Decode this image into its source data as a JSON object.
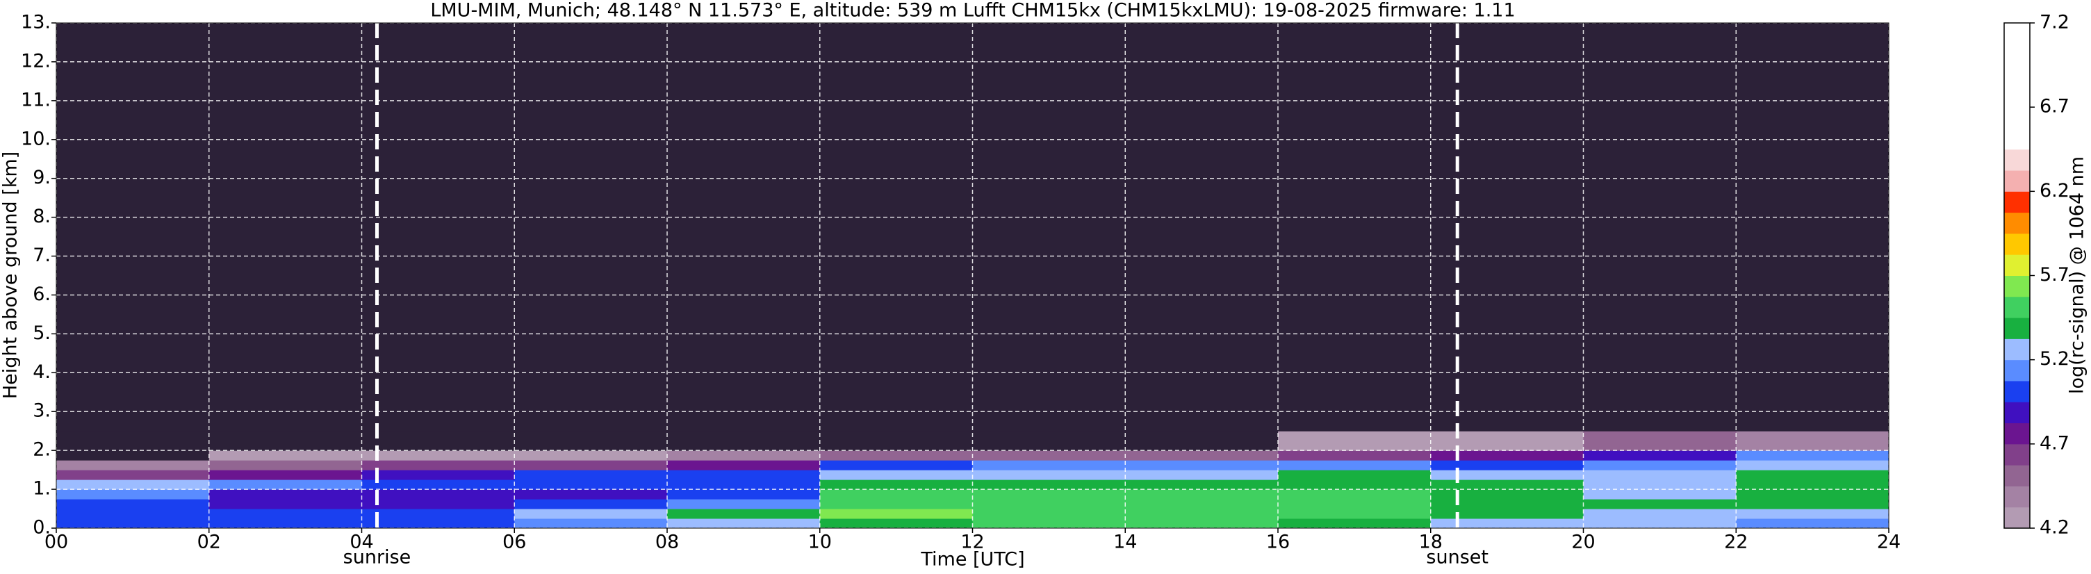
{
  "chart_data": {
    "type": "heatmap",
    "title": "LMU-MIM, Munich; 48.148° N 11.573° E, altitude: 539 m    Lufft CHM15kx (CHM15kxLMU): 19-08-2025    firmware: 1.11",
    "x_label": "Time [UTC]",
    "y_label": "Height above ground [km]",
    "colorbar_label": "log(rc-signal) @ 1064 nm",
    "xlim": [
      0,
      24
    ],
    "ylim": [
      0,
      13
    ],
    "xticks": [
      {
        "value": 0,
        "label": "00"
      },
      {
        "value": 2,
        "label": "02"
      },
      {
        "value": 4,
        "label": "04"
      },
      {
        "value": 6,
        "label": "06"
      },
      {
        "value": 8,
        "label": "08"
      },
      {
        "value": 10,
        "label": "10"
      },
      {
        "value": 12,
        "label": "12"
      },
      {
        "value": 14,
        "label": "14"
      },
      {
        "value": 16,
        "label": "16"
      },
      {
        "value": 18,
        "label": "18"
      },
      {
        "value": 20,
        "label": "20"
      },
      {
        "value": 22,
        "label": "22"
      },
      {
        "value": 24,
        "label": "24"
      }
    ],
    "yticks": [
      {
        "value": 0,
        "label": "0."
      },
      {
        "value": 1,
        "label": "1."
      },
      {
        "value": 2,
        "label": "2."
      },
      {
        "value": 3,
        "label": "3."
      },
      {
        "value": 4,
        "label": "4."
      },
      {
        "value": 5,
        "label": "5."
      },
      {
        "value": 6,
        "label": "6."
      },
      {
        "value": 7,
        "label": "7."
      },
      {
        "value": 8,
        "label": "8."
      },
      {
        "value": 9,
        "label": "9."
      },
      {
        "value": 10,
        "label": "10."
      },
      {
        "value": 11,
        "label": "11."
      },
      {
        "value": 12,
        "label": "12."
      },
      {
        "value": 13,
        "label": "13."
      }
    ],
    "grid": true,
    "x_edges": [
      0,
      2,
      4,
      6,
      8,
      10,
      12,
      14,
      16,
      18,
      20,
      22,
      24
    ],
    "y_edges": [
      0,
      0.25,
      0.5,
      0.75,
      1.0,
      1.25,
      1.5,
      1.75,
      2.0,
      2.5,
      3.0,
      13
    ],
    "z": [
      [
        5.0,
        4.95,
        5.0,
        5.1,
        5.2,
        5.4,
        5.45,
        5.45,
        5.4,
        5.3,
        5.2,
        5.1
      ],
      [
        5.05,
        4.95,
        4.95,
        5.3,
        5.4,
        5.6,
        5.5,
        5.45,
        5.45,
        5.35,
        5.3,
        5.3
      ],
      [
        4.95,
        4.9,
        4.9,
        4.95,
        5.1,
        5.55,
        5.5,
        5.45,
        5.45,
        5.4,
        5.35,
        5.35
      ],
      [
        5.1,
        4.9,
        4.9,
        4.9,
        5.0,
        5.45,
        5.45,
        5.45,
        5.45,
        5.4,
        5.3,
        5.35
      ],
      [
        5.3,
        5.1,
        5.0,
        5.0,
        5.0,
        5.35,
        5.35,
        5.4,
        5.4,
        5.35,
        5.3,
        5.4
      ],
      [
        4.6,
        4.8,
        4.9,
        5.0,
        5.05,
        5.3,
        5.3,
        5.3,
        5.35,
        5.3,
        5.2,
        5.4
      ],
      [
        4.35,
        4.5,
        4.6,
        4.65,
        4.7,
        5.0,
        5.1,
        5.1,
        5.15,
        5.0,
        5.1,
        5.3
      ],
      [
        4.1,
        4.2,
        4.3,
        4.3,
        4.35,
        4.5,
        4.55,
        4.55,
        4.6,
        4.7,
        4.9,
        5.1
      ],
      [
        4.0,
        4.05,
        4.1,
        4.1,
        4.1,
        4.15,
        4.15,
        4.15,
        4.2,
        4.3,
        4.5,
        4.4
      ],
      [
        3.95,
        4.0,
        4.0,
        4.0,
        4.0,
        4.0,
        4.0,
        4.0,
        4.05,
        4.05,
        4.1,
        4.1
      ],
      [
        3.9,
        3.9,
        3.9,
        3.9,
        3.9,
        3.9,
        3.9,
        3.9,
        3.9,
        3.9,
        3.9,
        3.9
      ]
    ],
    "clim": [
      4.2,
      7.2
    ],
    "cticks": [
      4.2,
      4.7,
      5.2,
      5.7,
      6.2,
      6.7,
      7.2
    ],
    "under_color": "#2c2138",
    "colormap": [
      "#b39bb3",
      "#a482a4",
      "#926592",
      "#81408a",
      "#6b1590",
      "#4010c0",
      "#1a40f0",
      "#5a8cff",
      "#9cbcff",
      "#18b040",
      "#40d060",
      "#80e850",
      "#e0f030",
      "#ffc800",
      "#ff8c00",
      "#ff3000",
      "#f4b0b0",
      "#f8d8d8",
      "#ffffff",
      "#ffffff",
      "#ffffff",
      "#ffffff",
      "#ffffff",
      "#ffffff"
    ],
    "annotations": [
      {
        "x": 4.2,
        "label": "sunrise"
      },
      {
        "x": 18.35,
        "label": "sunset"
      }
    ]
  }
}
